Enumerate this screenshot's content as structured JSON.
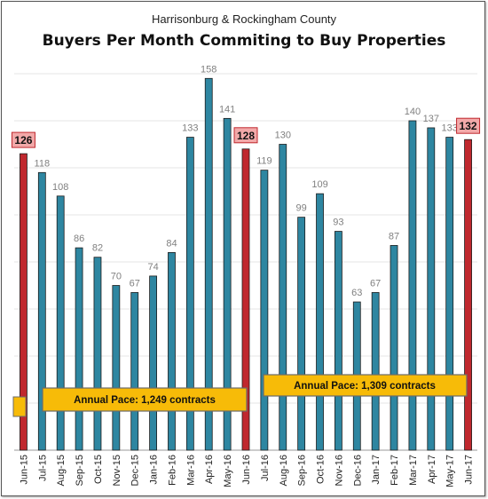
{
  "chart_data": {
    "type": "bar",
    "subtitle": "Harrisonburg & Rockingham County",
    "title": "Buyers Per Month Commiting to Buy Properties",
    "xlabel": "",
    "ylabel": "",
    "ylim": [
      0,
      170
    ],
    "grid": true,
    "categories": [
      "Jun-15",
      "Jul-15",
      "Aug-15",
      "Sep-15",
      "Oct-15",
      "Nov-15",
      "Dec-15",
      "Jan-16",
      "Feb-16",
      "Mar-16",
      "Apr-16",
      "May-16",
      "Jun-16",
      "Jul-16",
      "Aug-16",
      "Sep-16",
      "Oct-16",
      "Nov-16",
      "Dec-16",
      "Jan-17",
      "Feb-17",
      "Mar-17",
      "Apr-17",
      "May-17",
      "Jun-17"
    ],
    "values": [
      126,
      118,
      108,
      86,
      82,
      70,
      67,
      74,
      84,
      133,
      158,
      141,
      128,
      119,
      130,
      99,
      109,
      93,
      63,
      67,
      87,
      140,
      137,
      133,
      132
    ],
    "highlighted_categories": [
      "Jun-15",
      "Jun-16",
      "Jun-17"
    ],
    "annotations": [
      {
        "text": "Annual Pace: 1,249 contracts"
      },
      {
        "text": "Annual Pace: 1,309 contracts"
      }
    ],
    "colors": {
      "bar": "#2e86a1",
      "highlight_bar": "#c0282e",
      "highlight_label_bg": "#f2a9a9",
      "annotation_bg": "#f7bb08",
      "grid": "#e6e6e6"
    }
  }
}
